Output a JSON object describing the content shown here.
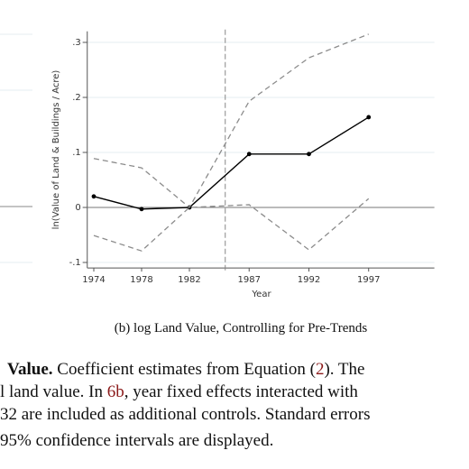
{
  "chart_data": {
    "type": "line",
    "ylabel": "ln(Value of Land & Buildings / Acre)",
    "xlabel": "Year",
    "x": [
      1974,
      1978,
      1982,
      1987,
      1992,
      1997
    ],
    "xlim": [
      1973,
      2002.5
    ],
    "xticks": [
      1974,
      1978,
      1982,
      1987,
      1992,
      1997
    ],
    "ylim": [
      -0.11,
      0.32
    ],
    "yticks": [
      {
        "value": -0.1,
        "label": "-.1"
      },
      0,
      {
        "value": 0.1,
        "label": ".1"
      },
      {
        "value": 0.2,
        "label": ".2"
      },
      {
        "value": 0.3,
        "label": ".3"
      }
    ],
    "grid": true,
    "hline": 0,
    "vline": 1985,
    "series": [
      {
        "color": "#000000",
        "dashed": false,
        "markers": true,
        "values": [
          0.02,
          -0.003,
          0,
          0.097,
          0.097,
          0.164
        ]
      },
      {
        "color": "#8c8c8c",
        "dashed": true,
        "markers": false,
        "values": [
          0.089,
          0.072,
          0,
          0.193,
          0.272,
          0.315
        ]
      },
      {
        "color": "#8c8c8c",
        "dashed": true,
        "markers": false,
        "values": [
          -0.051,
          -0.079,
          0,
          0.005,
          -0.077,
          0.016
        ]
      }
    ]
  },
  "caption": "(b) log Land Value, Controlling for Pre-Trends",
  "body": {
    "lines": [
      [
        "Value.",
        " Coefficient estimates from Equation (",
        "2",
        ").  The"
      ],
      [
        "l land value.  In ",
        "6b",
        ", year fixed effects interacted with"
      ],
      [
        "32 are included as additional controls. Standard errors"
      ],
      [
        "95% confidence intervals are displayed."
      ]
    ]
  }
}
